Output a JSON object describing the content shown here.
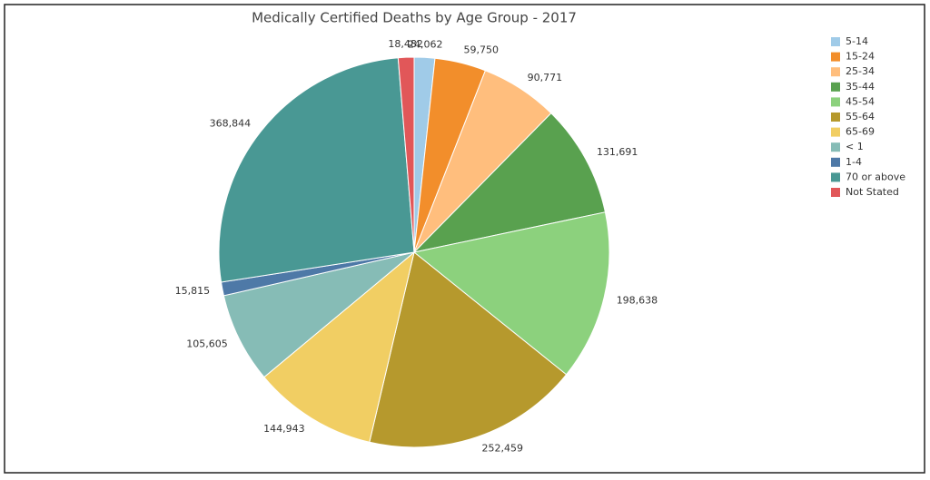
{
  "chart_data": {
    "type": "pie",
    "title": "Medically Certified Deaths by Age Group - 2017",
    "categories": [
      "5-14",
      "15-24",
      "25-34",
      "35-44",
      "45-54",
      "55-64",
      "65-69",
      "< 1",
      "1-4",
      "70 or above",
      "Not Stated"
    ],
    "values": [
      24062,
      59750,
      90771,
      131691,
      198638,
      252459,
      144943,
      105605,
      15815,
      368844,
      18482
    ],
    "value_labels": [
      "24,062",
      "59,750",
      "90,771",
      "131,691",
      "198,638",
      "252,459",
      "144,943",
      "105,605",
      "15,815",
      "368,844",
      "18,482"
    ],
    "colors": [
      "#a0cbe8",
      "#f28e2b",
      "#ffbe7d",
      "#59a14f",
      "#8cd17d",
      "#b6992d",
      "#f1ce63",
      "#86bcb6",
      "#4e79a7",
      "#499894",
      "#e15759"
    ],
    "legend": "right"
  }
}
